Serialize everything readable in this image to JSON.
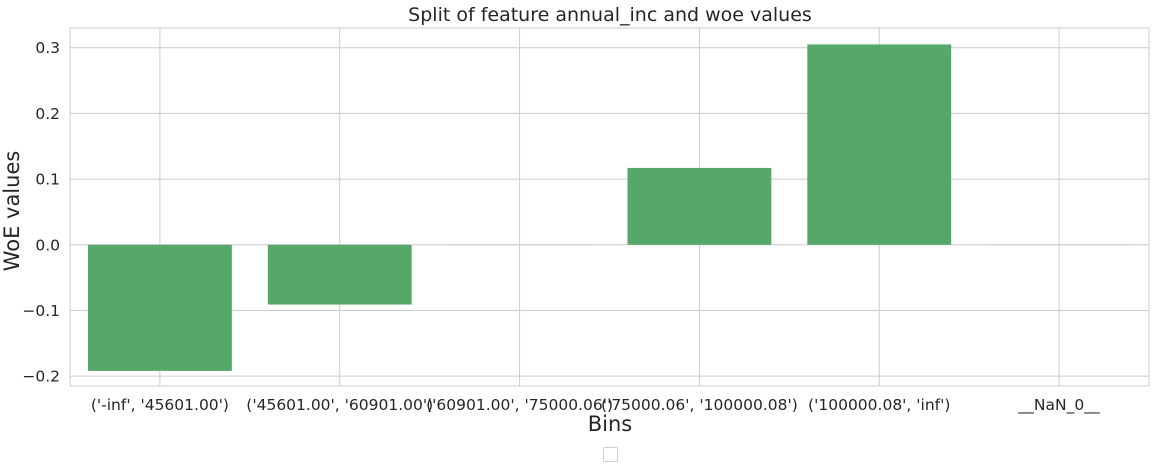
{
  "chart_data": {
    "type": "bar",
    "title": "Split of feature annual_inc and woe values",
    "xlabel": "Bins",
    "ylabel": "WoE values",
    "categories": [
      "('-inf', '45601.00')",
      "('45601.00', '60901.00')",
      "('60901.00', '75000.06')",
      "('75000.06', '100000.08')",
      "('100000.08', 'inf')",
      "__NaN_0__"
    ],
    "values": [
      -0.192,
      -0.091,
      0.0,
      0.117,
      0.305,
      0.0
    ],
    "ylim": [
      -0.215,
      0.33
    ],
    "yticks": [
      -0.2,
      -0.1,
      0.0,
      0.1,
      0.2,
      0.3
    ],
    "ytick_labels": [
      "−0.2",
      "−0.1",
      "0.0",
      "0.1",
      "0.2",
      "0.3"
    ],
    "grid": true,
    "bar_color": "#55a868",
    "legend": {
      "placement": "bottom-center",
      "entries": []
    }
  }
}
